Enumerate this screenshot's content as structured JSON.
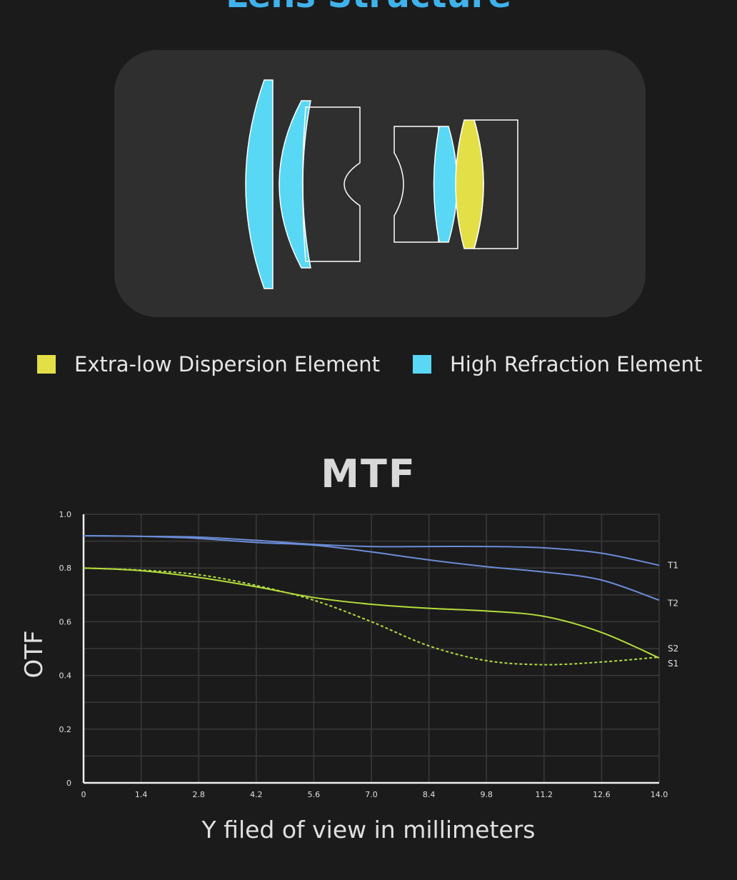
{
  "header": {
    "title": "Lens Structure"
  },
  "legend": {
    "items": [
      {
        "label": "Extra-low Dispersion Element",
        "color": "#e3df46"
      },
      {
        "label": "High Refraction Element",
        "color": "#58d8f4"
      }
    ]
  },
  "colors": {
    "background": "#1b1b1b",
    "card": "#2f2f2f",
    "ed": "#e3df46",
    "hr": "#58d8f4",
    "tangential": "#6b8cd6",
    "sagittal": "#b4dd3c"
  },
  "chart_data": {
    "type": "line",
    "title": "MTF",
    "xlabel": "Y filed of view in millimeters",
    "ylabel": "OTF",
    "xlim": [
      0,
      14
    ],
    "ylim": [
      0,
      1.0
    ],
    "x_ticks": [
      "0",
      "1.4",
      "2.8",
      "4.2",
      "5.6",
      "7.0",
      "8.4",
      "9.8",
      "11.2",
      "12.6",
      "14.0"
    ],
    "y_ticks": [
      "0",
      "0.2",
      "0.4",
      "0.6",
      "0.8",
      "1.0"
    ],
    "grid": true,
    "series": [
      {
        "name": "T1",
        "color": "#6b8cd6",
        "style": "solid",
        "x": [
          0,
          1.4,
          2.8,
          4.2,
          5.6,
          7.0,
          8.4,
          9.8,
          11.2,
          12.6,
          14.0
        ],
        "y": [
          0.92,
          0.918,
          0.915,
          0.903,
          0.888,
          0.88,
          0.88,
          0.88,
          0.875,
          0.855,
          0.81
        ]
      },
      {
        "name": "T2",
        "color": "#6b8cd6",
        "style": "solid",
        "x": [
          0,
          1.4,
          2.8,
          4.2,
          5.6,
          7.0,
          8.4,
          9.8,
          11.2,
          12.6,
          14.0
        ],
        "y": [
          0.92,
          0.918,
          0.91,
          0.895,
          0.885,
          0.86,
          0.83,
          0.805,
          0.785,
          0.755,
          0.68
        ]
      },
      {
        "name": "S1",
        "color": "#b4dd3c",
        "style": "solid",
        "x": [
          0,
          1.4,
          2.8,
          4.2,
          5.6,
          7.0,
          8.4,
          9.8,
          11.2,
          12.6,
          14.0
        ],
        "y": [
          0.8,
          0.79,
          0.765,
          0.73,
          0.69,
          0.665,
          0.65,
          0.64,
          0.62,
          0.56,
          0.465
        ]
      },
      {
        "name": "S2",
        "color": "#b4dd3c",
        "style": "dashed",
        "x": [
          0,
          1.4,
          2.8,
          4.2,
          5.6,
          7.0,
          8.4,
          9.8,
          11.2,
          12.6,
          14.0
        ],
        "y": [
          0.8,
          0.792,
          0.775,
          0.735,
          0.68,
          0.6,
          0.51,
          0.455,
          0.44,
          0.45,
          0.468
        ]
      }
    ],
    "end_labels": [
      "T1",
      "T2",
      "S2",
      "S1"
    ]
  }
}
